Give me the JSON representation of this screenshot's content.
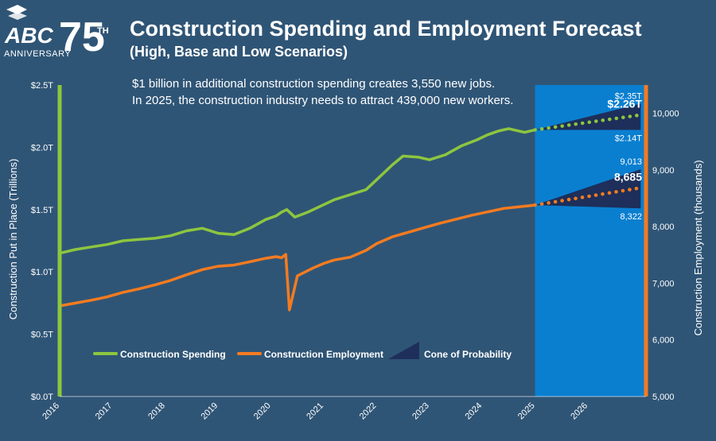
{
  "logo": {
    "brand": "ABC",
    "number": "75",
    "superscript": "TH",
    "caption": "ANNIVERSARY"
  },
  "header": {
    "title": "Construction Spending and Employment Forecast",
    "subtitle": "(High, Base and Low Scenarios)",
    "note_line1": "$1 billion in additional construction spending creates 3,550 new jobs.",
    "note_line2": "In 2025, the construction industry needs to attract 439,000 new workers."
  },
  "colors": {
    "background": "#2f5576",
    "spending": "#8dc63f",
    "employment": "#f47b20",
    "forecast_band": "#0a7fd0",
    "cone": "#1d2f5a",
    "text": "#ffffff"
  },
  "chart_data": {
    "type": "line",
    "title": "Construction Spending and Employment Forecast",
    "subtitle": "(High, Base and Low Scenarios)",
    "x_ticks": [
      "2016",
      "2017",
      "2018",
      "2019",
      "2020",
      "2021",
      "2022",
      "2023",
      "2024",
      "2025",
      "2026"
    ],
    "ylabel_left": "Construction Put in Place (Trillions)",
    "ylabel_right": "Construction Employment (thousands)",
    "y_left": {
      "min": 0,
      "max": 2.5,
      "ticks": [
        "$0.0T",
        "$0.5T",
        "$1.0T",
        "$1.5T",
        "$2.0T",
        "$2.5T"
      ]
    },
    "y_right": {
      "min": 5000,
      "max": 10500,
      "ticks": [
        "5,000",
        "6,000",
        "7,000",
        "8,000",
        "9,000",
        "10,000"
      ]
    },
    "forecast_start": 2025.0,
    "x_range": [
      2016,
      2027.1
    ],
    "legend": [
      "Construction Spending",
      "Construction Employment",
      "Cone of Probability"
    ],
    "legend_position": "bottom-left",
    "series": [
      {
        "name": "Construction Spending",
        "axis": "left",
        "x": [
          2016.0,
          2016.3,
          2016.6,
          2016.9,
          2017.2,
          2017.5,
          2017.8,
          2018.1,
          2018.4,
          2018.7,
          2019.0,
          2019.3,
          2019.6,
          2019.9,
          2020.1,
          2020.2,
          2020.3,
          2020.45,
          2020.7,
          2020.9,
          2021.2,
          2021.5,
          2021.8,
          2022.0,
          2022.3,
          2022.5,
          2022.8,
          2023.0,
          2023.3,
          2023.6,
          2023.9,
          2024.1,
          2024.3,
          2024.5,
          2024.8,
          2025.0
        ],
        "values": [
          1.15,
          1.18,
          1.2,
          1.22,
          1.25,
          1.26,
          1.27,
          1.29,
          1.33,
          1.35,
          1.31,
          1.3,
          1.35,
          1.42,
          1.45,
          1.48,
          1.5,
          1.44,
          1.48,
          1.52,
          1.58,
          1.62,
          1.66,
          1.74,
          1.86,
          1.93,
          1.92,
          1.9,
          1.94,
          2.01,
          2.06,
          2.1,
          2.13,
          2.15,
          2.12,
          2.14
        ]
      },
      {
        "name": "Construction Employment",
        "axis": "right",
        "x": [
          2016.0,
          2016.3,
          2016.6,
          2016.9,
          2017.2,
          2017.5,
          2017.8,
          2018.1,
          2018.4,
          2018.7,
          2019.0,
          2019.3,
          2019.6,
          2019.9,
          2020.1,
          2020.2,
          2020.28,
          2020.35,
          2020.5,
          2020.8,
          2021.0,
          2021.2,
          2021.5,
          2021.8,
          2022.0,
          2022.3,
          2022.6,
          2022.9,
          2023.2,
          2023.5,
          2023.8,
          2024.1,
          2024.4,
          2024.7,
          2025.0
        ],
        "values": [
          6600,
          6650,
          6700,
          6760,
          6840,
          6900,
          6970,
          7050,
          7150,
          7240,
          7300,
          7320,
          7380,
          7440,
          7470,
          7450,
          7510,
          6530,
          7130,
          7270,
          7350,
          7410,
          7460,
          7580,
          7700,
          7820,
          7900,
          7980,
          8060,
          8130,
          8200,
          8260,
          8320,
          8350,
          8380
        ]
      }
    ],
    "forecast": [
      {
        "name": "Construction Spending",
        "axis": "left",
        "start": 2.14,
        "end_year": 2027.0,
        "high": 2.35,
        "base": 2.26,
        "low": 2.14,
        "high_label": "$2.35T",
        "base_label": "$2.26T",
        "low_label": "$2.14T"
      },
      {
        "name": "Construction Employment",
        "axis": "right",
        "start": 8380,
        "end_year": 2027.0,
        "high": 9013,
        "base": 8685,
        "low": 8322,
        "high_label": "9,013",
        "base_label": "8,685",
        "low_label": "8,322"
      }
    ]
  }
}
